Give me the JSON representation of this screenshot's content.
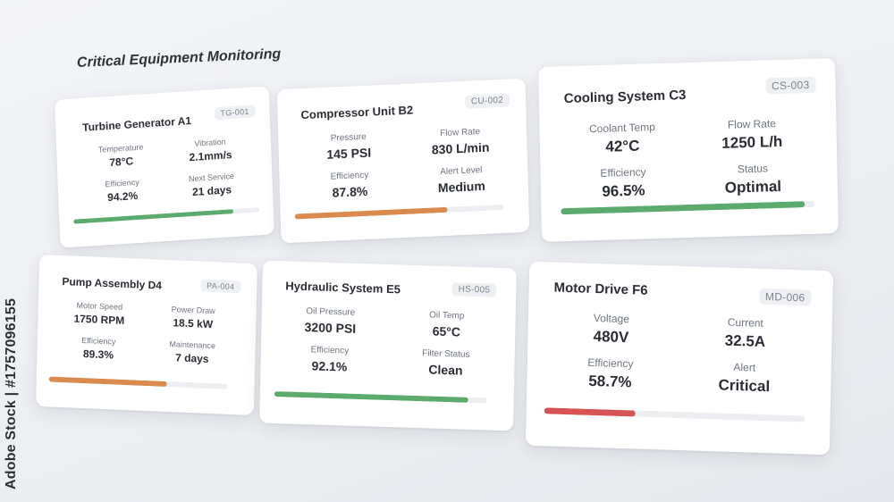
{
  "header": {
    "title": "Critical Equipment Monitoring"
  },
  "colors": {
    "green": "#5bab6d",
    "orange": "#d98a4c",
    "red": "#d65454"
  },
  "watermark": "Adobe Stock | #1757096155",
  "cards": [
    {
      "name": "Turbine Generator A1",
      "id": "TG-001",
      "metrics": [
        {
          "label": "Temperature",
          "value": "78°C"
        },
        {
          "label": "Vibration",
          "value": "2.1mm/s"
        },
        {
          "label": "Efficiency",
          "value": "94.2%"
        },
        {
          "label": "Next Service",
          "value": "21 days"
        }
      ],
      "progress": 0.86,
      "status_color": "green"
    },
    {
      "name": "Compressor Unit B2",
      "id": "CU-002",
      "metrics": [
        {
          "label": "Pressure",
          "value": "145 PSI"
        },
        {
          "label": "Flow Rate",
          "value": "830 L/min"
        },
        {
          "label": "Efficiency",
          "value": "87.8%"
        },
        {
          "label": "Alert Level",
          "value": "Medium"
        }
      ],
      "progress": 0.73,
      "status_color": "orange"
    },
    {
      "name": "Cooling System C3",
      "id": "CS-003",
      "metrics": [
        {
          "label": "Coolant Temp",
          "value": "42°C"
        },
        {
          "label": "Flow Rate",
          "value": "1250 L/h"
        },
        {
          "label": "Efficiency",
          "value": "96.5%"
        },
        {
          "label": "Status",
          "value": "Optimal"
        }
      ],
      "progress": 0.96,
      "status_color": "green"
    },
    {
      "name": "Pump Assembly D4",
      "id": "PA-004",
      "metrics": [
        {
          "label": "Motor Speed",
          "value": "1750 RPM"
        },
        {
          "label": "Power Draw",
          "value": "18.5 kW"
        },
        {
          "label": "Efficiency",
          "value": "89.3%"
        },
        {
          "label": "Maintenance",
          "value": "7 days"
        }
      ],
      "progress": 0.66,
      "status_color": "orange"
    },
    {
      "name": "Hydraulic System E5",
      "id": "HS-005",
      "metrics": [
        {
          "label": "Oil Pressure",
          "value": "3200 PSI"
        },
        {
          "label": "Oil Temp",
          "value": "65°C"
        },
        {
          "label": "Efficiency",
          "value": "92.1%"
        },
        {
          "label": "Filter Status",
          "value": "Clean"
        }
      ],
      "progress": 0.91,
      "status_color": "green"
    },
    {
      "name": "Motor Drive F6",
      "id": "MD-006",
      "metrics": [
        {
          "label": "Voltage",
          "value": "480V"
        },
        {
          "label": "Current",
          "value": "32.5A"
        },
        {
          "label": "Efficiency",
          "value": "58.7%"
        },
        {
          "label": "Alert",
          "value": "Critical"
        }
      ],
      "progress": 0.35,
      "status_color": "red"
    }
  ]
}
